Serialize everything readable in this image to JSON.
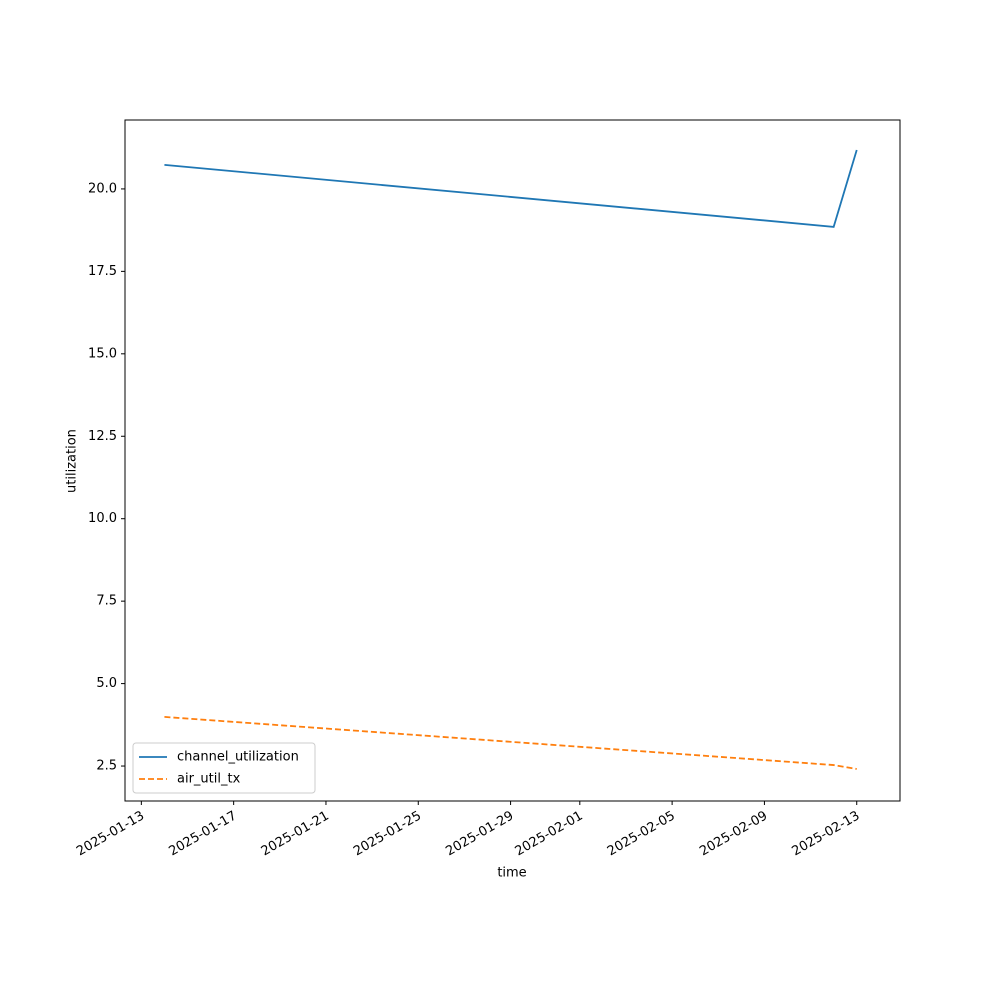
{
  "chart_data": {
    "type": "line",
    "x_label": "time",
    "y_label": "utilization",
    "x": [
      "2025-01-14",
      "2025-02-12",
      "2025-02-13"
    ],
    "series": [
      {
        "name": "channel_utilization",
        "color": "#1f77b4",
        "linestyle": "solid",
        "values": [
          20.73,
          18.85,
          21.18
        ]
      },
      {
        "name": "air_util_tx",
        "color": "#ff7f0e",
        "linestyle": "dashed",
        "values": [
          3.99,
          2.53,
          2.41
        ]
      }
    ],
    "xlim": [
      "2025-01-12T07:00",
      "2025-02-14T21:00"
    ],
    "xticks": [
      "2025-01-13",
      "2025-01-17",
      "2025-01-21",
      "2025-01-25",
      "2025-01-29",
      "2025-02-01",
      "2025-02-05",
      "2025-02-09",
      "2025-02-13"
    ],
    "ylim": [
      1.44,
      22.09
    ],
    "yticks": [
      {
        "value": 2.5,
        "label": "2.5"
      },
      {
        "value": 5,
        "label": "5.0"
      },
      {
        "value": 7.5,
        "label": "7.5"
      },
      {
        "value": 10,
        "label": "10.0"
      },
      {
        "value": 12.5,
        "label": "12.5"
      },
      {
        "value": 15,
        "label": "15.0"
      },
      {
        "value": 17.5,
        "label": "17.5"
      },
      {
        "value": 20,
        "label": "20.0"
      }
    ],
    "grid": false,
    "legend": "lower left"
  }
}
